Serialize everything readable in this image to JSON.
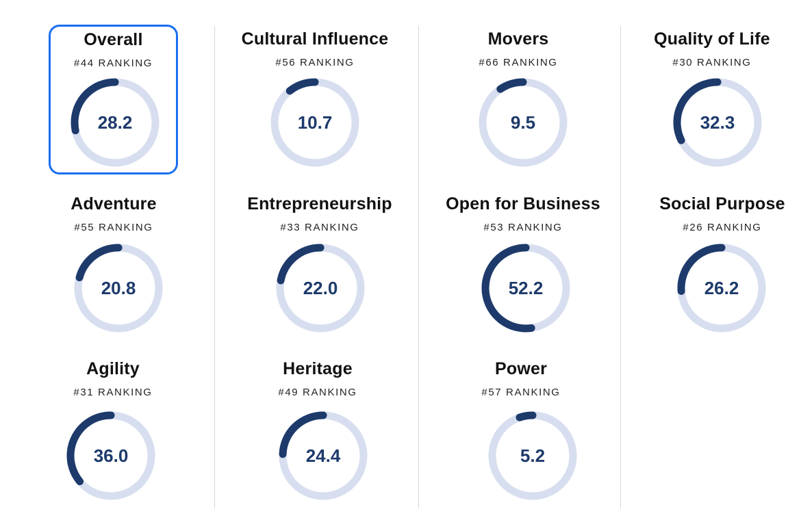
{
  "colors": {
    "track": "#d7deef",
    "progress": "#1d3a6b",
    "selected_border": "#1a6ef0",
    "value_text": "#1d3a6b"
  },
  "ring_max_value": 100,
  "cards": [
    {
      "id": "overall",
      "title": "Overall",
      "ranking": "#44 RANKING",
      "value": "28.2",
      "selected": true
    },
    {
      "id": "cultural-influence",
      "title": "Cultural Influence",
      "ranking": "#56 RANKING",
      "value": "10.7",
      "selected": false
    },
    {
      "id": "movers",
      "title": "Movers",
      "ranking": "#66 RANKING",
      "value": "9.5",
      "selected": false
    },
    {
      "id": "quality-of-life",
      "title": "Quality of Life",
      "ranking": "#30 RANKING",
      "value": "32.3",
      "selected": false
    },
    {
      "id": "adventure",
      "title": "Adventure",
      "ranking": "#55 RANKING",
      "value": "20.8",
      "selected": false
    },
    {
      "id": "entrepreneurship",
      "title": "Entrepreneurship",
      "ranking": "#33 RANKING",
      "value": "22.0",
      "selected": false
    },
    {
      "id": "open-for-business",
      "title": "Open for Business",
      "ranking": "#53 RANKING",
      "value": "52.2",
      "selected": false
    },
    {
      "id": "social-purpose",
      "title": "Social Purpose",
      "ranking": "#26 RANKING",
      "value": "26.2",
      "selected": false
    },
    {
      "id": "agility",
      "title": "Agility",
      "ranking": "#31 RANKING",
      "value": "36.0",
      "selected": false
    },
    {
      "id": "heritage",
      "title": "Heritage",
      "ranking": "#49 RANKING",
      "value": "24.4",
      "selected": false
    },
    {
      "id": "power",
      "title": "Power",
      "ranking": "#57 RANKING",
      "value": "5.2",
      "selected": false
    }
  ]
}
